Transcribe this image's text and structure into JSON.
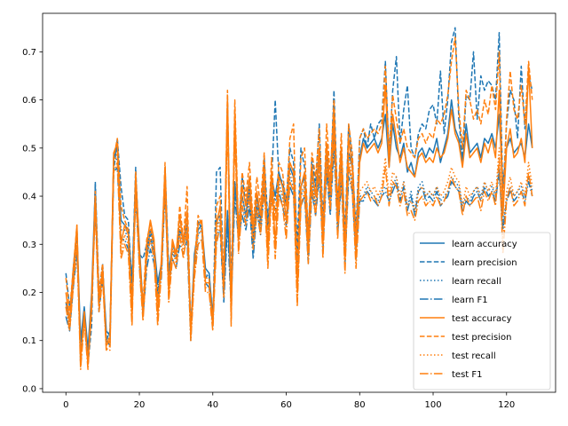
{
  "chart_data": {
    "type": "line",
    "title": "",
    "xlabel": "",
    "ylabel": "",
    "xlim": [
      -6.35,
      133.35
    ],
    "ylim": [
      -0.0075,
      0.78
    ],
    "x_ticks": [
      0,
      20,
      40,
      60,
      80,
      100,
      120
    ],
    "x_tick_labels": [
      "0",
      "20",
      "40",
      "60",
      "80",
      "100",
      "120"
    ],
    "y_ticks": [
      0.0,
      0.1,
      0.2,
      0.3,
      0.4,
      0.5,
      0.6,
      0.7
    ],
    "y_tick_labels": [
      "0.0",
      "0.1",
      "0.2",
      "0.3",
      "0.4",
      "0.5",
      "0.6",
      "0.7"
    ],
    "grid": false,
    "legend_position": "lower-right",
    "x": {
      "start": 0,
      "end": 127,
      "step": 1
    },
    "series": [
      {
        "name": "learn accuracy",
        "color": "#1f77b4",
        "dash": "solid",
        "values": [
          0.18,
          0.14,
          0.25,
          0.33,
          0.1,
          0.17,
          0.08,
          0.2,
          0.42,
          0.18,
          0.25,
          0.12,
          0.11,
          0.48,
          0.5,
          0.35,
          0.34,
          0.33,
          0.22,
          0.44,
          0.3,
          0.17,
          0.28,
          0.33,
          0.3,
          0.22,
          0.26,
          0.45,
          0.24,
          0.3,
          0.28,
          0.33,
          0.31,
          0.34,
          0.12,
          0.28,
          0.33,
          0.34,
          0.25,
          0.24,
          0.15,
          0.35,
          0.36,
          0.2,
          0.37,
          0.19,
          0.43,
          0.34,
          0.4,
          0.36,
          0.42,
          0.3,
          0.4,
          0.35,
          0.45,
          0.34,
          0.44,
          0.4,
          0.45,
          0.42,
          0.38,
          0.46,
          0.44,
          0.27,
          0.42,
          0.44,
          0.3,
          0.45,
          0.4,
          0.48,
          0.33,
          0.49,
          0.4,
          0.55,
          0.36,
          0.48,
          0.3,
          0.49,
          0.46,
          0.31,
          0.48,
          0.52,
          0.5,
          0.51,
          0.52,
          0.5,
          0.52,
          0.57,
          0.46,
          0.55,
          0.5,
          0.48,
          0.51,
          0.45,
          0.47,
          0.44,
          0.49,
          0.5,
          0.48,
          0.5,
          0.49,
          0.52,
          0.47,
          0.5,
          0.53,
          0.6,
          0.54,
          0.52,
          0.47,
          0.55,
          0.49,
          0.5,
          0.51,
          0.48,
          0.52,
          0.51,
          0.53,
          0.5,
          0.57,
          0.42,
          0.5,
          0.52,
          0.49,
          0.5,
          0.51,
          0.48,
          0.55,
          0.5
        ]
      },
      {
        "name": "learn precision",
        "color": "#1f77b4",
        "dash": "dashed",
        "values": [
          0.24,
          0.17,
          0.22,
          0.33,
          0.05,
          0.15,
          0.05,
          0.13,
          0.43,
          0.2,
          0.26,
          0.1,
          0.12,
          0.45,
          0.52,
          0.42,
          0.36,
          0.35,
          0.21,
          0.46,
          0.28,
          0.27,
          0.3,
          0.32,
          0.28,
          0.2,
          0.25,
          0.46,
          0.25,
          0.28,
          0.27,
          0.36,
          0.3,
          0.37,
          0.13,
          0.26,
          0.35,
          0.33,
          0.23,
          0.24,
          0.13,
          0.45,
          0.46,
          0.21,
          0.6,
          0.2,
          0.55,
          0.32,
          0.44,
          0.38,
          0.44,
          0.31,
          0.38,
          0.33,
          0.48,
          0.35,
          0.43,
          0.6,
          0.44,
          0.43,
          0.39,
          0.5,
          0.47,
          0.3,
          0.5,
          0.46,
          0.32,
          0.48,
          0.42,
          0.55,
          0.35,
          0.51,
          0.42,
          0.62,
          0.38,
          0.5,
          0.32,
          0.55,
          0.47,
          0.33,
          0.52,
          0.54,
          0.5,
          0.55,
          0.52,
          0.55,
          0.56,
          0.68,
          0.48,
          0.62,
          0.69,
          0.51,
          0.58,
          0.63,
          0.5,
          0.48,
          0.53,
          0.55,
          0.54,
          0.58,
          0.59,
          0.55,
          0.66,
          0.53,
          0.6,
          0.72,
          0.75,
          0.56,
          0.48,
          0.61,
          0.6,
          0.7,
          0.56,
          0.65,
          0.62,
          0.64,
          0.63,
          0.6,
          0.74,
          0.4,
          0.55,
          0.62,
          0.6,
          0.52,
          0.67,
          0.54,
          0.65,
          0.62
        ]
      },
      {
        "name": "learn recall",
        "color": "#1f77b4",
        "dash": "dotted",
        "values": [
          0.17,
          0.13,
          0.22,
          0.3,
          0.09,
          0.16,
          0.07,
          0.18,
          0.4,
          0.17,
          0.24,
          0.11,
          0.1,
          0.47,
          0.48,
          0.33,
          0.33,
          0.31,
          0.2,
          0.42,
          0.28,
          0.16,
          0.27,
          0.31,
          0.28,
          0.21,
          0.25,
          0.43,
          0.22,
          0.29,
          0.27,
          0.32,
          0.3,
          0.33,
          0.11,
          0.27,
          0.32,
          0.33,
          0.24,
          0.23,
          0.14,
          0.34,
          0.35,
          0.19,
          0.36,
          0.18,
          0.42,
          0.33,
          0.38,
          0.35,
          0.4,
          0.29,
          0.39,
          0.34,
          0.43,
          0.33,
          0.42,
          0.39,
          0.43,
          0.4,
          0.36,
          0.44,
          0.42,
          0.26,
          0.4,
          0.42,
          0.28,
          0.43,
          0.38,
          0.46,
          0.31,
          0.47,
          0.38,
          0.52,
          0.34,
          0.45,
          0.28,
          0.46,
          0.43,
          0.29,
          0.4,
          0.4,
          0.42,
          0.41,
          0.4,
          0.39,
          0.41,
          0.42,
          0.4,
          0.42,
          0.44,
          0.4,
          0.43,
          0.38,
          0.41,
          0.37,
          0.42,
          0.43,
          0.4,
          0.41,
          0.4,
          0.42,
          0.39,
          0.4,
          0.41,
          0.44,
          0.43,
          0.42,
          0.38,
          0.4,
          0.39,
          0.41,
          0.42,
          0.4,
          0.43,
          0.41,
          0.42,
          0.4,
          0.46,
          0.34,
          0.4,
          0.42,
          0.4,
          0.41,
          0.42,
          0.4,
          0.44,
          0.41
        ]
      },
      {
        "name": "learn F1",
        "color": "#1f77b4",
        "dash": "dashdot",
        "values": [
          0.15,
          0.12,
          0.21,
          0.28,
          0.08,
          0.15,
          0.06,
          0.17,
          0.38,
          0.16,
          0.23,
          0.1,
          0.09,
          0.45,
          0.46,
          0.31,
          0.31,
          0.29,
          0.19,
          0.4,
          0.26,
          0.15,
          0.25,
          0.29,
          0.26,
          0.19,
          0.23,
          0.41,
          0.21,
          0.27,
          0.25,
          0.3,
          0.28,
          0.31,
          0.1,
          0.25,
          0.3,
          0.31,
          0.22,
          0.21,
          0.13,
          0.32,
          0.33,
          0.18,
          0.34,
          0.17,
          0.4,
          0.31,
          0.36,
          0.33,
          0.38,
          0.27,
          0.37,
          0.32,
          0.41,
          0.31,
          0.4,
          0.37,
          0.41,
          0.38,
          0.34,
          0.42,
          0.4,
          0.24,
          0.38,
          0.4,
          0.26,
          0.41,
          0.36,
          0.44,
          0.29,
          0.45,
          0.36,
          0.5,
          0.32,
          0.43,
          0.26,
          0.44,
          0.41,
          0.27,
          0.39,
          0.39,
          0.41,
          0.4,
          0.39,
          0.38,
          0.4,
          0.41,
          0.39,
          0.41,
          0.43,
          0.39,
          0.42,
          0.37,
          0.4,
          0.36,
          0.41,
          0.42,
          0.39,
          0.4,
          0.39,
          0.41,
          0.38,
          0.39,
          0.4,
          0.43,
          0.42,
          0.41,
          0.37,
          0.39,
          0.38,
          0.4,
          0.41,
          0.39,
          0.42,
          0.4,
          0.41,
          0.39,
          0.45,
          0.33,
          0.39,
          0.41,
          0.39,
          0.4,
          0.41,
          0.39,
          0.43,
          0.4
        ]
      },
      {
        "name": "test accuracy",
        "color": "#ff7f0e",
        "dash": "solid",
        "values": [
          0.2,
          0.14,
          0.24,
          0.34,
          0.06,
          0.16,
          0.05,
          0.19,
          0.4,
          0.18,
          0.25,
          0.09,
          0.1,
          0.49,
          0.51,
          0.3,
          0.34,
          0.32,
          0.15,
          0.45,
          0.29,
          0.16,
          0.3,
          0.35,
          0.31,
          0.15,
          0.27,
          0.46,
          0.2,
          0.31,
          0.28,
          0.36,
          0.3,
          0.37,
          0.11,
          0.26,
          0.34,
          0.35,
          0.22,
          0.22,
          0.14,
          0.34,
          0.38,
          0.21,
          0.6,
          0.15,
          0.58,
          0.31,
          0.42,
          0.38,
          0.44,
          0.33,
          0.41,
          0.36,
          0.46,
          0.28,
          0.45,
          0.3,
          0.44,
          0.42,
          0.35,
          0.47,
          0.45,
          0.2,
          0.42,
          0.45,
          0.29,
          0.46,
          0.4,
          0.5,
          0.3,
          0.51,
          0.41,
          0.58,
          0.35,
          0.5,
          0.27,
          0.52,
          0.46,
          0.28,
          0.47,
          0.51,
          0.49,
          0.5,
          0.51,
          0.49,
          0.51,
          0.63,
          0.46,
          0.57,
          0.52,
          0.47,
          0.5,
          0.46,
          0.45,
          0.44,
          0.48,
          0.49,
          0.47,
          0.48,
          0.47,
          0.5,
          0.48,
          0.49,
          0.52,
          0.58,
          0.53,
          0.51,
          0.46,
          0.53,
          0.48,
          0.49,
          0.5,
          0.47,
          0.51,
          0.49,
          0.52,
          0.48,
          0.62,
          0.36,
          0.5,
          0.54,
          0.48,
          0.49,
          0.52,
          0.47,
          0.67,
          0.5
        ]
      },
      {
        "name": "test precision",
        "color": "#ff7f0e",
        "dash": "dashed",
        "values": [
          0.23,
          0.16,
          0.25,
          0.34,
          0.05,
          0.15,
          0.06,
          0.16,
          0.41,
          0.2,
          0.26,
          0.09,
          0.11,
          0.48,
          0.52,
          0.38,
          0.35,
          0.33,
          0.18,
          0.44,
          0.27,
          0.18,
          0.31,
          0.34,
          0.3,
          0.18,
          0.26,
          0.47,
          0.22,
          0.3,
          0.27,
          0.38,
          0.31,
          0.42,
          0.12,
          0.26,
          0.36,
          0.34,
          0.23,
          0.23,
          0.13,
          0.38,
          0.4,
          0.22,
          0.62,
          0.16,
          0.6,
          0.33,
          0.45,
          0.4,
          0.47,
          0.34,
          0.44,
          0.38,
          0.49,
          0.3,
          0.48,
          0.35,
          0.47,
          0.45,
          0.38,
          0.52,
          0.55,
          0.25,
          0.48,
          0.5,
          0.32,
          0.49,
          0.44,
          0.54,
          0.33,
          0.55,
          0.44,
          0.6,
          0.38,
          0.53,
          0.3,
          0.55,
          0.49,
          0.31,
          0.52,
          0.54,
          0.52,
          0.53,
          0.54,
          0.53,
          0.55,
          0.67,
          0.49,
          0.61,
          0.56,
          0.51,
          0.54,
          0.5,
          0.49,
          0.48,
          0.52,
          0.53,
          0.51,
          0.53,
          0.52,
          0.56,
          0.55,
          0.57,
          0.61,
          0.68,
          0.73,
          0.58,
          0.5,
          0.62,
          0.6,
          0.56,
          0.58,
          0.55,
          0.6,
          0.57,
          0.63,
          0.58,
          0.7,
          0.38,
          0.56,
          0.66,
          0.58,
          0.56,
          0.63,
          0.55,
          0.68,
          0.6
        ]
      },
      {
        "name": "test recall",
        "color": "#ff7f0e",
        "dash": "dotted",
        "values": [
          0.18,
          0.13,
          0.22,
          0.32,
          0.05,
          0.15,
          0.05,
          0.18,
          0.39,
          0.17,
          0.24,
          0.08,
          0.09,
          0.47,
          0.49,
          0.28,
          0.32,
          0.3,
          0.14,
          0.43,
          0.27,
          0.15,
          0.28,
          0.33,
          0.29,
          0.14,
          0.25,
          0.44,
          0.19,
          0.29,
          0.26,
          0.34,
          0.28,
          0.35,
          0.1,
          0.24,
          0.32,
          0.33,
          0.21,
          0.21,
          0.13,
          0.32,
          0.36,
          0.2,
          0.58,
          0.14,
          0.55,
          0.29,
          0.4,
          0.36,
          0.42,
          0.31,
          0.39,
          0.34,
          0.44,
          0.26,
          0.43,
          0.28,
          0.42,
          0.4,
          0.33,
          0.45,
          0.43,
          0.18,
          0.4,
          0.43,
          0.27,
          0.44,
          0.38,
          0.48,
          0.28,
          0.49,
          0.39,
          0.55,
          0.33,
          0.47,
          0.25,
          0.49,
          0.43,
          0.26,
          0.41,
          0.42,
          0.43,
          0.41,
          0.42,
          0.4,
          0.42,
          0.48,
          0.4,
          0.45,
          0.44,
          0.4,
          0.43,
          0.38,
          0.39,
          0.37,
          0.41,
          0.42,
          0.4,
          0.41,
          0.4,
          0.42,
          0.4,
          0.41,
          0.43,
          0.46,
          0.44,
          0.43,
          0.38,
          0.42,
          0.4,
          0.41,
          0.42,
          0.39,
          0.43,
          0.41,
          0.43,
          0.4,
          0.5,
          0.3,
          0.41,
          0.44,
          0.4,
          0.41,
          0.43,
          0.4,
          0.47,
          0.42
        ]
      },
      {
        "name": "test F1",
        "color": "#ff7f0e",
        "dash": "dashdot",
        "values": [
          0.17,
          0.12,
          0.21,
          0.3,
          0.04,
          0.14,
          0.04,
          0.17,
          0.37,
          0.16,
          0.23,
          0.08,
          0.08,
          0.45,
          0.47,
          0.27,
          0.3,
          0.28,
          0.13,
          0.41,
          0.25,
          0.14,
          0.27,
          0.31,
          0.27,
          0.13,
          0.24,
          0.42,
          0.18,
          0.27,
          0.25,
          0.32,
          0.27,
          0.33,
          0.1,
          0.23,
          0.3,
          0.31,
          0.2,
          0.2,
          0.12,
          0.3,
          0.34,
          0.19,
          0.56,
          0.13,
          0.53,
          0.28,
          0.38,
          0.34,
          0.4,
          0.29,
          0.37,
          0.32,
          0.42,
          0.25,
          0.41,
          0.27,
          0.4,
          0.38,
          0.31,
          0.43,
          0.41,
          0.17,
          0.38,
          0.41,
          0.26,
          0.42,
          0.36,
          0.46,
          0.27,
          0.47,
          0.37,
          0.53,
          0.31,
          0.45,
          0.24,
          0.47,
          0.41,
          0.25,
          0.39,
          0.4,
          0.41,
          0.39,
          0.4,
          0.38,
          0.4,
          0.46,
          0.38,
          0.43,
          0.42,
          0.38,
          0.41,
          0.36,
          0.37,
          0.35,
          0.39,
          0.4,
          0.38,
          0.39,
          0.38,
          0.4,
          0.38,
          0.39,
          0.41,
          0.44,
          0.42,
          0.41,
          0.36,
          0.4,
          0.38,
          0.39,
          0.4,
          0.37,
          0.41,
          0.39,
          0.41,
          0.38,
          0.48,
          0.28,
          0.39,
          0.42,
          0.38,
          0.39,
          0.41,
          0.38,
          0.45,
          0.4
        ]
      }
    ]
  }
}
